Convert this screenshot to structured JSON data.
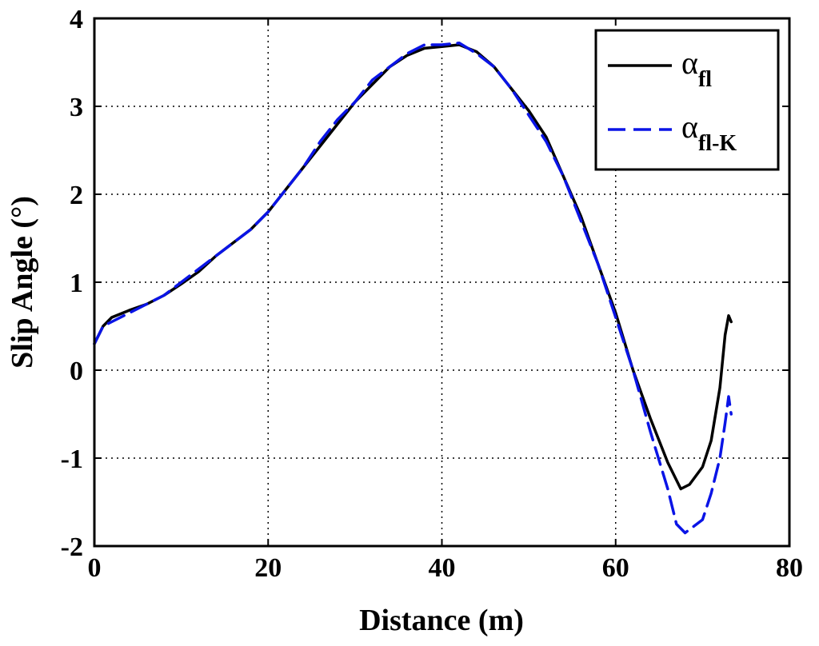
{
  "chart_data": {
    "type": "line",
    "xlabel": "Distance (m)",
    "ylabel": "Slip Angle (°)",
    "xlim": [
      0,
      80
    ],
    "ylim": [
      -2,
      4
    ],
    "xticks": [
      0,
      20,
      40,
      60,
      80
    ],
    "yticks": [
      -2,
      -1,
      0,
      1,
      2,
      3,
      4
    ],
    "xtick_labels": [
      "0",
      "20",
      "40",
      "60",
      "80"
    ],
    "ytick_labels": [
      "-2",
      "-1",
      "0",
      "1",
      "2",
      "3",
      "4"
    ],
    "grid": true,
    "legend_position": "top-right",
    "series": [
      {
        "name": "α",
        "subscript": "fl",
        "color": "#000000",
        "style": "solid",
        "x": [
          0,
          1,
          2,
          4,
          6,
          8,
          10,
          12,
          14,
          16,
          18,
          20,
          22,
          24,
          26,
          28,
          30,
          32,
          34,
          36,
          38,
          40,
          42,
          44,
          46,
          48,
          50,
          52,
          54,
          56,
          58,
          60,
          62,
          64,
          66,
          67.5,
          68.5,
          70,
          71,
          72,
          72.6,
          73,
          73.3
        ],
        "y": [
          0.3,
          0.5,
          0.6,
          0.68,
          0.75,
          0.85,
          0.98,
          1.12,
          1.3,
          1.45,
          1.6,
          1.8,
          2.05,
          2.3,
          2.55,
          2.8,
          3.05,
          3.25,
          3.45,
          3.58,
          3.66,
          3.68,
          3.7,
          3.62,
          3.45,
          3.2,
          2.95,
          2.65,
          2.2,
          1.75,
          1.2,
          0.65,
          0.0,
          -0.55,
          -1.05,
          -1.35,
          -1.3,
          -1.1,
          -0.8,
          -0.2,
          0.4,
          0.62,
          0.55
        ]
      },
      {
        "name": "α",
        "subscript": "fl-K",
        "color": "#0a14e6",
        "style": "dashed",
        "x": [
          0,
          1,
          2,
          4,
          6,
          8,
          10,
          12,
          14,
          16,
          18,
          20,
          22,
          24,
          26,
          28,
          30,
          32,
          34,
          36,
          38,
          40,
          42,
          44,
          46,
          48,
          50,
          52,
          54,
          56,
          58,
          60,
          62,
          64,
          66,
          67,
          68,
          70,
          71,
          72,
          72.6,
          73,
          73.3
        ],
        "y": [
          0.3,
          0.5,
          0.55,
          0.65,
          0.75,
          0.85,
          1.0,
          1.15,
          1.3,
          1.45,
          1.6,
          1.8,
          2.05,
          2.3,
          2.6,
          2.85,
          3.05,
          3.3,
          3.45,
          3.6,
          3.7,
          3.7,
          3.72,
          3.6,
          3.45,
          3.2,
          2.9,
          2.6,
          2.2,
          1.7,
          1.2,
          0.6,
          0.0,
          -0.7,
          -1.35,
          -1.75,
          -1.85,
          -1.7,
          -1.4,
          -1.0,
          -0.6,
          -0.3,
          -0.5
        ]
      }
    ]
  }
}
